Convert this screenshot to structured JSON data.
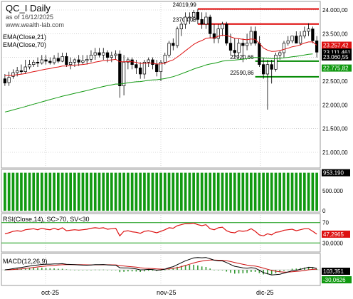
{
  "header": {
    "symbol_title": "QC_I Daily",
    "as_of": "as of 16/12/2025",
    "site": "www.wealth-lab.com"
  },
  "colors": {
    "up": "#ffffff",
    "down": "#000000",
    "ema21": "#dd1111",
    "ema70": "#119911",
    "support": "#008800",
    "resistance": "#dd0000",
    "volume": "#119911",
    "rsi": "#dd1111",
    "macd": "#000000",
    "macd_signal": "#cc1111",
    "hist": "#339933",
    "grid": "#b8b8b8",
    "label_black": "#000000",
    "label_red": "#dd1111",
    "label_green": "#119911"
  },
  "price_panel": {
    "legend": [
      "EMA(Close,21)",
      "EMA(Close,70)"
    ],
    "ylim": [
      20700,
      24150
    ],
    "y_ticks": [
      "24.000,00",
      "23.500,00",
      "23.000,00",
      "22.500,00",
      "22.000,00",
      "21.500,00",
      "21.000,00"
    ],
    "tick_values": [
      24000,
      23500,
      23000,
      22500,
      22000,
      21500,
      21000
    ],
    "last_labels": [
      {
        "text": "23.257,42",
        "value": 23257,
        "color": "red"
      },
      {
        "text": "23.111,461",
        "value": 23111,
        "color": "black"
      },
      {
        "text": "23.060,55",
        "value": 23010,
        "color": "black"
      },
      {
        "text": "22.775,82",
        "value": 22776,
        "color": "green"
      }
    ],
    "levels": [
      {
        "label": "24019,99",
        "value": 24020,
        "type": "resistance",
        "from": 47
      },
      {
        "label": "23704,08",
        "value": 23704,
        "type": "resistance",
        "from": 47
      },
      {
        "label": "22920,66",
        "value": 22921,
        "type": "support",
        "from": 61
      },
      {
        "label": "22590,86",
        "value": 22591,
        "type": "support",
        "from": 61
      }
    ]
  },
  "chart_data": {
    "type": "candlestick",
    "dates": [
      "01-09-25",
      "02-09-25",
      "03-09-25",
      "04-09-25",
      "05-09-25",
      "08-09-25",
      "09-09-25",
      "10-09-25",
      "11-09-25",
      "12-09-25",
      "15-09-25",
      "16-09-25",
      "17-09-25",
      "18-09-25",
      "19-09-25",
      "22-09-25",
      "23-09-25",
      "24-09-25",
      "25-09-25",
      "26-09-25",
      "29-09-25",
      "30-09-25",
      "01-10-25",
      "02-10-25",
      "03-10-25",
      "06-10-25",
      "07-10-25",
      "08-10-25",
      "09-10-25",
      "10-10-25",
      "13-10-25",
      "14-10-25",
      "15-10-25",
      "16-10-25",
      "17-10-25",
      "20-10-25",
      "21-10-25",
      "22-10-25",
      "23-10-25",
      "24-10-25",
      "27-10-25",
      "28-10-25",
      "29-10-25",
      "30-10-25",
      "31-10-25",
      "03-11-25",
      "04-11-25",
      "05-11-25",
      "06-11-25",
      "07-11-25",
      "10-11-25",
      "11-11-25",
      "12-11-25",
      "13-11-25",
      "14-11-25",
      "17-11-25",
      "18-11-25",
      "19-11-25",
      "20-11-25",
      "21-11-25",
      "24-11-25",
      "25-11-25",
      "26-11-25",
      "27-11-25",
      "28-11-25",
      "01-12-25",
      "02-12-25",
      "03-12-25",
      "04-12-25",
      "05-12-25",
      "08-12-25",
      "09-12-25",
      "10-12-25",
      "11-12-25",
      "12-12-25",
      "15-12-25",
      "16-12-25"
    ],
    "open": [
      22550,
      22470,
      22600,
      22680,
      22720,
      22700,
      22800,
      22850,
      22900,
      22880,
      22950,
      22920,
      22890,
      22980,
      22920,
      23020,
      22850,
      22900,
      22950,
      22900,
      22930,
      22960,
      23050,
      23100,
      23050,
      23100,
      23000,
      23040,
      23070,
      22400,
      22900,
      22950,
      22850,
      22780,
      22650,
      22900,
      22950,
      22850,
      22700,
      22900,
      23050,
      23300,
      23250,
      23600,
      23700,
      23850,
      23850,
      23950,
      23800,
      23700,
      23850,
      23500,
      23400,
      23600,
      23700,
      23300,
      23150,
      23100,
      23300,
      23250,
      23300,
      23550,
      23300,
      22850,
      22650,
      22850,
      22750,
      23050,
      23100,
      23300,
      23350,
      23450,
      23300,
      23450,
      23550,
      23600,
      23350
    ],
    "high": [
      22650,
      22700,
      22750,
      22800,
      22850,
      22950,
      22950,
      22950,
      23000,
      23050,
      23050,
      23000,
      23050,
      23100,
      23100,
      23100,
      23000,
      22980,
      23050,
      23050,
      23050,
      23150,
      23200,
      23200,
      23200,
      23150,
      23120,
      23150,
      23150,
      23050,
      23000,
      23000,
      22950,
      22900,
      22950,
      23000,
      23000,
      22950,
      22950,
      23100,
      23350,
      23400,
      23650,
      23750,
      23950,
      23950,
      24000,
      24020,
      23950,
      23950,
      23900,
      23700,
      23700,
      23750,
      23750,
      23500,
      23400,
      23400,
      23400,
      23500,
      23650,
      23650,
      23450,
      23000,
      22950,
      22950,
      23100,
      23150,
      23350,
      23450,
      23450,
      23550,
      23550,
      23650,
      23720,
      23650,
      23450
    ],
    "low": [
      22400,
      22400,
      22550,
      22600,
      22650,
      22650,
      22750,
      22800,
      22800,
      22850,
      22850,
      22850,
      22850,
      22880,
      22900,
      22800,
      22750,
      22800,
      22820,
      22850,
      22850,
      22900,
      22950,
      23000,
      22950,
      22900,
      22900,
      22950,
      22150,
      22200,
      22750,
      22750,
      22650,
      22550,
      22550,
      22800,
      22750,
      22600,
      22500,
      22850,
      23000,
      23150,
      23200,
      23450,
      23600,
      23700,
      23750,
      23700,
      23600,
      23600,
      23400,
      23300,
      23300,
      23450,
      23250,
      23050,
      23000,
      23000,
      22900,
      23150,
      23250,
      23250,
      22800,
      22550,
      21900,
      22450,
      22700,
      22950,
      23000,
      23250,
      23300,
      23300,
      23250,
      23400,
      23450,
      23300,
      23000
    ],
    "close": [
      22460,
      22580,
      22680,
      22720,
      22700,
      22800,
      22850,
      22900,
      22880,
      22950,
      22920,
      22890,
      22980,
      22920,
      23020,
      22850,
      22900,
      22950,
      22900,
      22930,
      22960,
      23050,
      23100,
      23050,
      23100,
      23000,
      23040,
      23070,
      22400,
      22900,
      22950,
      22850,
      22780,
      22650,
      22900,
      22950,
      22850,
      22700,
      22900,
      23050,
      23300,
      23250,
      23600,
      23700,
      23850,
      23850,
      23950,
      23800,
      23700,
      23850,
      23500,
      23400,
      23600,
      23700,
      23300,
      23150,
      23100,
      23300,
      23250,
      23300,
      23550,
      23300,
      22850,
      22650,
      22850,
      22750,
      23050,
      23100,
      23300,
      23350,
      23450,
      23300,
      23450,
      23550,
      23600,
      23350,
      23111
    ],
    "ema21": [
      22620,
      22617,
      22623,
      22636,
      22645,
      22662,
      22682,
      22701,
      22716,
      22737,
      22754,
      22766,
      22786,
      22798,
      22818,
      22820,
      22827,
      22838,
      22843,
      22851,
      22861,
      22878,
      22900,
      22915,
      22933,
      22939,
      22948,
      22959,
      22908,
      22908,
      22913,
      22908,
      22896,
      22873,
      22875,
      22882,
      22880,
      22862,
      22864,
      22881,
      22919,
      22949,
      23008,
      23071,
      23141,
      23206,
      23274,
      23322,
      23357,
      23402,
      23413,
      23411,
      23446,
      23470,
      23464,
      23434,
      23404,
      23394,
      23382,
      23371,
      23388,
      23380,
      23300,
      23197,
      23154,
      23125,
      23130,
      23145,
      23170,
      23195,
      23225,
      23240,
      23268,
      23303,
      23327,
      23327,
      23257
    ],
    "ema70": [
      21850,
      21870,
      21894,
      21918,
      21940,
      21965,
      21990,
      22015,
      22038,
      22064,
      22088,
      22111,
      22136,
      22158,
      22183,
      22202,
      22223,
      22244,
      22263,
      22282,
      22302,
      22324,
      22346,
      22366,
      22387,
      22405,
      22422,
      22440,
      22438,
      22451,
      22466,
      22477,
      22486,
      22491,
      22503,
      22516,
      22525,
      22530,
      22540,
      22554,
      22575,
      22594,
      22623,
      22654,
      22688,
      22720,
      22755,
      22785,
      22811,
      22842,
      22861,
      22877,
      22898,
      22921,
      22932,
      22939,
      22944,
      22955,
      22964,
      22974,
      22991,
      23000,
      22996,
      22986,
      22982,
      22975,
      22977,
      22981,
      22990,
      23001,
      23015,
      23023,
      23036,
      23051,
      23066,
      23074,
      22776
    ],
    "volume": 953190,
    "volume_ticks": [
      "500.000",
      "0"
    ],
    "volume_label": "953.190",
    "rsi": {
      "label": "RSI(Close,14), SC>70, SV<30",
      "ticks": [
        "70",
        "30,0000"
      ],
      "last_label": "47,2965",
      "values": [
        48,
        50,
        53,
        54,
        53,
        56,
        57,
        58,
        56,
        59,
        57,
        56,
        59,
        56,
        60,
        54,
        55,
        56,
        55,
        56,
        57,
        59,
        60,
        59,
        60,
        57,
        58,
        59,
        44,
        53,
        54,
        52,
        51,
        49,
        53,
        54,
        52,
        50,
        53,
        56,
        60,
        59,
        64,
        66,
        68,
        68,
        69,
        66,
        64,
        66,
        58,
        56,
        60,
        61,
        54,
        51,
        50,
        54,
        53,
        54,
        58,
        53,
        46,
        44,
        48,
        46,
        51,
        52,
        55,
        56,
        57,
        54,
        56,
        58,
        58,
        53,
        47.3
      ]
    },
    "macd": {
      "label": "MACD(12,26,9)",
      "macd_label": "103,351",
      "hist_label": "-30,0626"
    }
  },
  "time_axis": [
    "oct-25",
    "nov-25",
    "dic-25"
  ]
}
